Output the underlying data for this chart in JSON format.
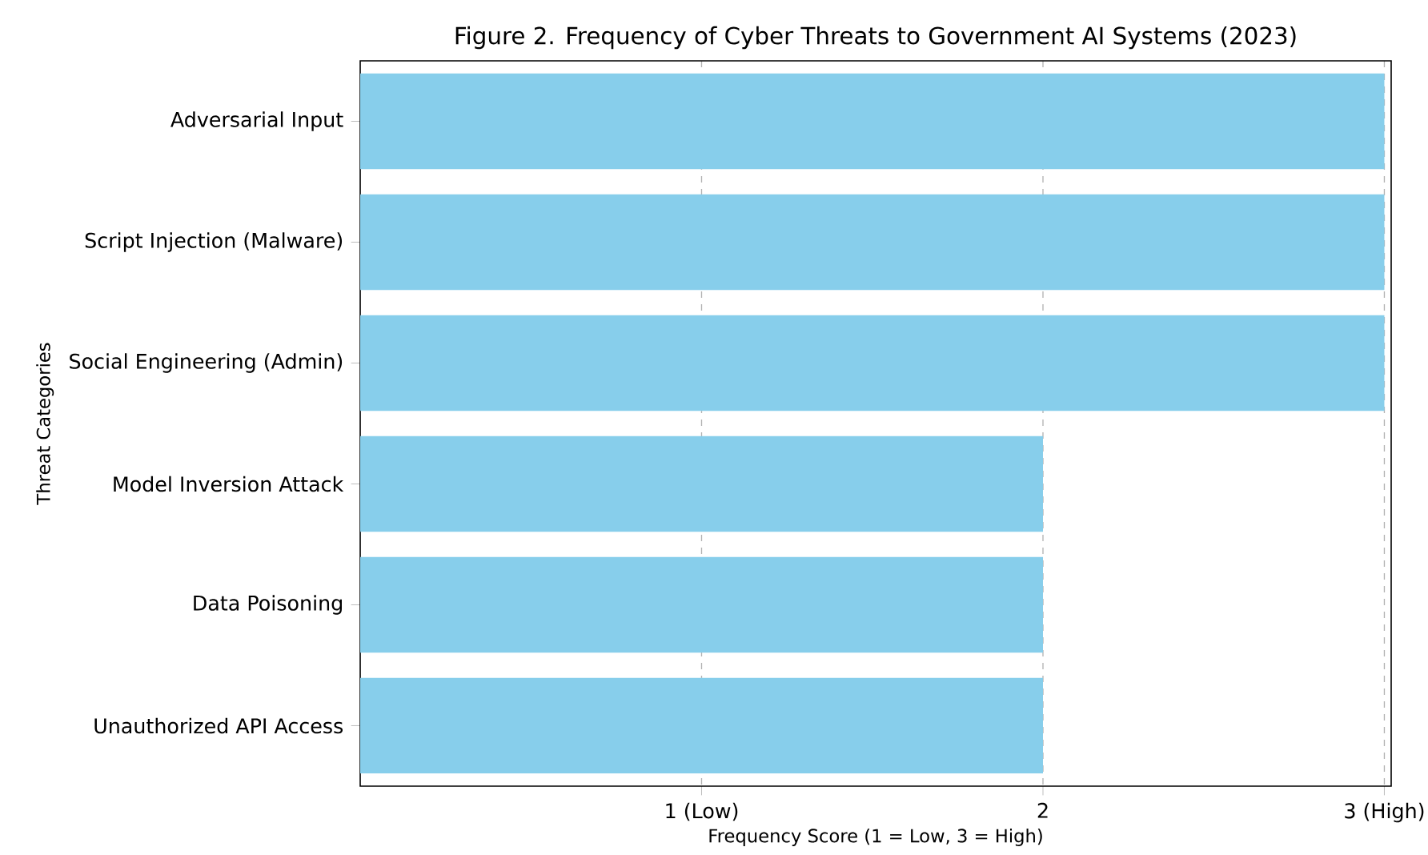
{
  "chart_data": {
    "type": "bar",
    "orientation": "horizontal",
    "title": "Figure 2. Frequency of Cyber Threats to Government AI Systems (2023)",
    "xlabel": "Frequency Score (1 = Low, 3 = High)",
    "ylabel": "Threat Categories",
    "categories": [
      "Adversarial Input",
      "Script Injection (Malware)",
      "Social Engineering (Admin)",
      "Model Inversion Attack",
      "Data Poisoning",
      "Unauthorized API Access"
    ],
    "values": [
      3,
      3,
      3,
      2,
      2,
      2
    ],
    "color": "#87ceeb",
    "xlim": [
      0,
      3.02
    ],
    "xticks": [
      {
        "value": 1,
        "label": "1 (Low)"
      },
      2,
      {
        "value": 3,
        "label": "3 (High)"
      }
    ],
    "grid": "x"
  }
}
